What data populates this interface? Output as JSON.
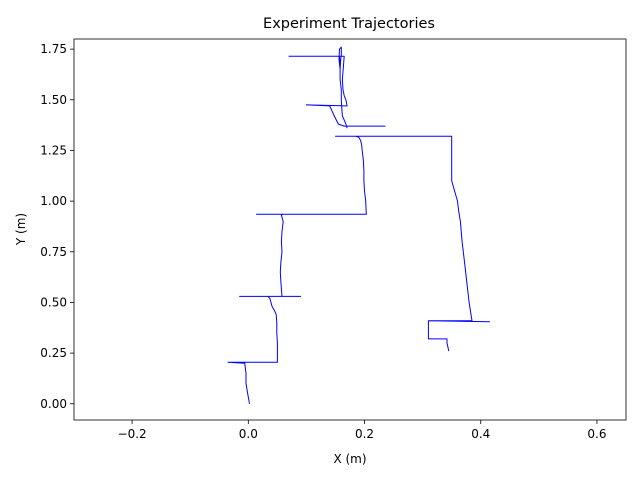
{
  "chart_data": {
    "type": "line",
    "title": "Experiment Trajectories",
    "xlabel": "X (m)",
    "ylabel": "Y (m)",
    "xlim": [
      -0.3,
      0.65
    ],
    "ylim": [
      -0.08,
      1.8
    ],
    "grid": false,
    "legend": "none",
    "line_color": "#0000ff",
    "x_ticks": [
      {
        "value": -0.2,
        "label": "−0.2"
      },
      {
        "value": 0.0,
        "label": "0.0"
      },
      {
        "value": 0.2,
        "label": "0.2"
      },
      {
        "value": 0.4,
        "label": "0.4"
      },
      {
        "value": 0.6,
        "label": "0.6"
      }
    ],
    "y_ticks": [
      {
        "value": 0.0,
        "label": "0.00"
      },
      {
        "value": 0.25,
        "label": "0.25"
      },
      {
        "value": 0.5,
        "label": "0.50"
      },
      {
        "value": 0.75,
        "label": "0.75"
      },
      {
        "value": 1.0,
        "label": "1.00"
      },
      {
        "value": 1.25,
        "label": "1.25"
      },
      {
        "value": 1.5,
        "label": "1.50"
      },
      {
        "value": 1.75,
        "label": "1.75"
      }
    ],
    "series": [
      {
        "x": [
          0.002,
          -0.001,
          -0.004,
          -0.004,
          -0.006,
          -0.035,
          0.05,
          0.05,
          0.049,
          0.049,
          0.048,
          0.045,
          0.041,
          0.039,
          0.037,
          0.034,
          -0.015,
          0.09,
          0.058,
          0.056,
          0.055,
          0.056,
          0.058,
          0.057,
          0.058,
          0.06,
          0.057,
          0.059,
          0.058,
          0.057,
          0.058,
          0.014,
          0.203,
          0.202,
          0.2,
          0.199,
          0.199,
          0.198,
          0.196,
          0.195,
          0.193,
          0.19,
          0.187,
          0.185,
          0.15,
          0.35,
          0.35,
          0.355,
          0.36,
          0.362,
          0.365,
          0.368,
          0.372,
          0.376,
          0.38,
          0.385,
          0.31,
          0.415,
          0.31,
          0.31,
          0.342,
          0.342,
          0.345
        ],
        "y": [
          0.0,
          0.05,
          0.1,
          0.15,
          0.2,
          0.205,
          0.205,
          0.3,
          0.35,
          0.4,
          0.44,
          0.46,
          0.48,
          0.5,
          0.52,
          0.53,
          0.53,
          0.53,
          0.53,
          0.6,
          0.65,
          0.7,
          0.75,
          0.8,
          0.85,
          0.9,
          0.93,
          0.935,
          0.935,
          0.935,
          0.935,
          0.935,
          0.935,
          1.0,
          1.05,
          1.1,
          1.15,
          1.2,
          1.25,
          1.28,
          1.3,
          1.315,
          1.318,
          1.32,
          1.32,
          1.32,
          1.1,
          1.05,
          1.0,
          0.95,
          0.9,
          0.8,
          0.7,
          0.6,
          0.5,
          0.41,
          0.41,
          0.405,
          0.41,
          0.32,
          0.32,
          0.3,
          0.26
        ]
      },
      {
        "x": [
          0.17,
          0.168,
          0.165,
          0.162,
          0.161,
          0.16,
          0.16,
          0.158,
          0.158,
          0.159,
          0.16,
          0.16,
          0.16,
          0.157,
          0.156,
          0.158,
          0.157,
          0.07,
          0.165,
          0.162,
          0.163,
          0.165,
          0.168,
          0.17,
          0.17,
          0.1,
          0.14,
          0.148,
          0.155,
          0.165,
          0.236
        ],
        "y": [
          1.36,
          1.38,
          1.4,
          1.42,
          1.45,
          1.5,
          1.55,
          1.6,
          1.65,
          1.7,
          1.72,
          1.75,
          1.76,
          1.75,
          1.7,
          1.65,
          1.715,
          1.715,
          1.715,
          1.6,
          1.55,
          1.52,
          1.5,
          1.47,
          1.47,
          1.475,
          1.47,
          1.42,
          1.38,
          1.37,
          1.37
        ]
      }
    ]
  }
}
